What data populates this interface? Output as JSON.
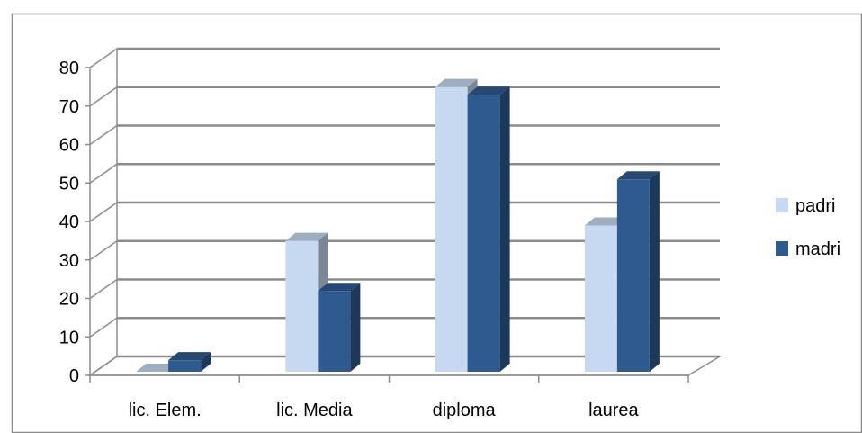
{
  "chart_data": {
    "type": "bar",
    "title": "",
    "xlabel": "",
    "ylabel": "",
    "categories": [
      "lic. Elem.",
      "lic. Media",
      "diploma",
      "laurea"
    ],
    "series": [
      {
        "name": "padri",
        "values": [
          0,
          34,
          74,
          38
        ],
        "color": "#c6d9f1"
      },
      {
        "name": "madri",
        "values": [
          3,
          21,
          72,
          50
        ],
        "color": "#2f5a8f"
      }
    ],
    "ylim": [
      0,
      80
    ],
    "yticks": [
      "0",
      "10",
      "20",
      "30",
      "40",
      "50",
      "60",
      "70",
      "80"
    ],
    "grid": true,
    "legend": "right",
    "style": "3d-clustered-column"
  }
}
